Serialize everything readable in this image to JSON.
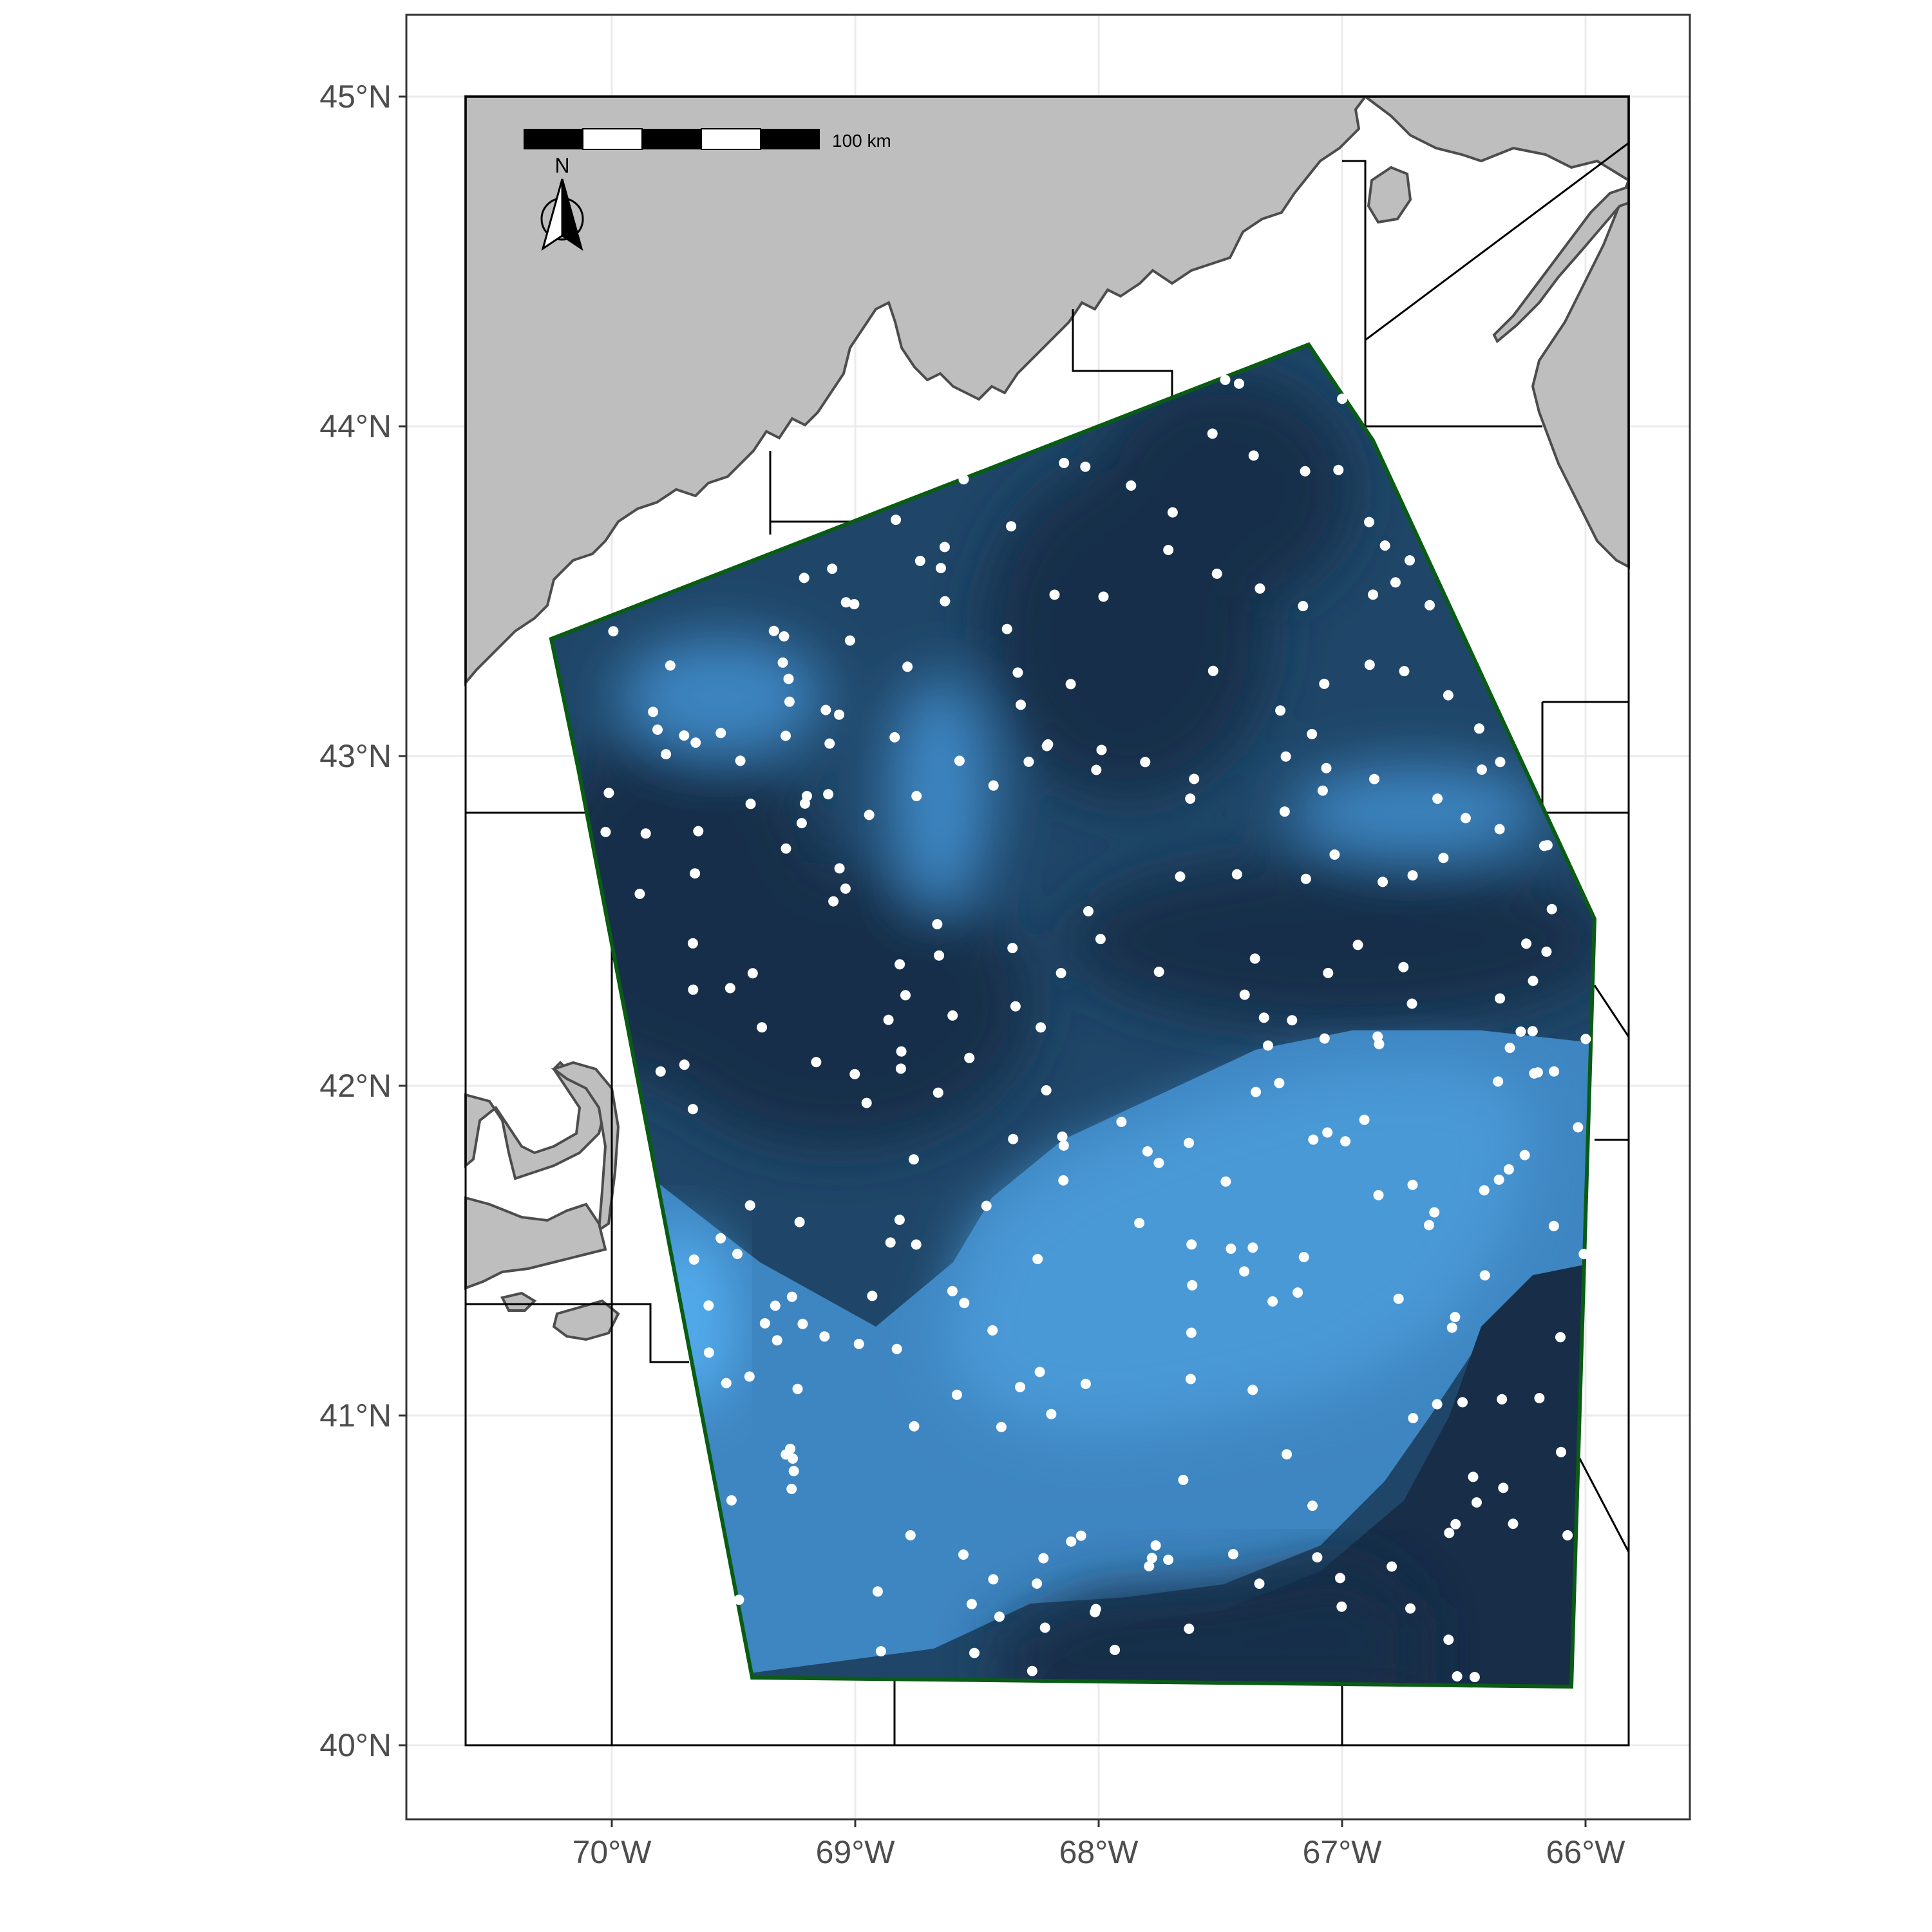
{
  "colors": {
    "land": "#bebebe",
    "coast": "#4d4d4d",
    "grid": "#ebebeb",
    "panel_border": "#333333",
    "boundary": "#000000",
    "survey_outline": "#0a5c14",
    "station": "#ffffff",
    "depth_deep": "#172d48",
    "depth_mid": "#1f4668",
    "depth_shelf": "#3e86c2",
    "depth_shallow": "#4a99d6",
    "depth_bright": "#55aff0"
  },
  "scale_bar": {
    "label": "100 km"
  },
  "north_arrow": {
    "label": "N",
    "icon": "north-arrow-icon"
  },
  "axes": {
    "y_ticks": [
      {
        "value": 40,
        "label": "40°N"
      },
      {
        "value": 41,
        "label": "41°N"
      },
      {
        "value": 42,
        "label": "42°N"
      },
      {
        "value": 43,
        "label": "43°N"
      },
      {
        "value": 44,
        "label": "44°N"
      },
      {
        "value": 45,
        "label": "45°N"
      }
    ],
    "x_ticks": [
      {
        "value": -70,
        "label": "70°W"
      },
      {
        "value": -69,
        "label": "69°W"
      },
      {
        "value": -68,
        "label": "68°W"
      },
      {
        "value": -67,
        "label": "67°W"
      },
      {
        "value": -66,
        "label": "66°W"
      }
    ]
  }
}
